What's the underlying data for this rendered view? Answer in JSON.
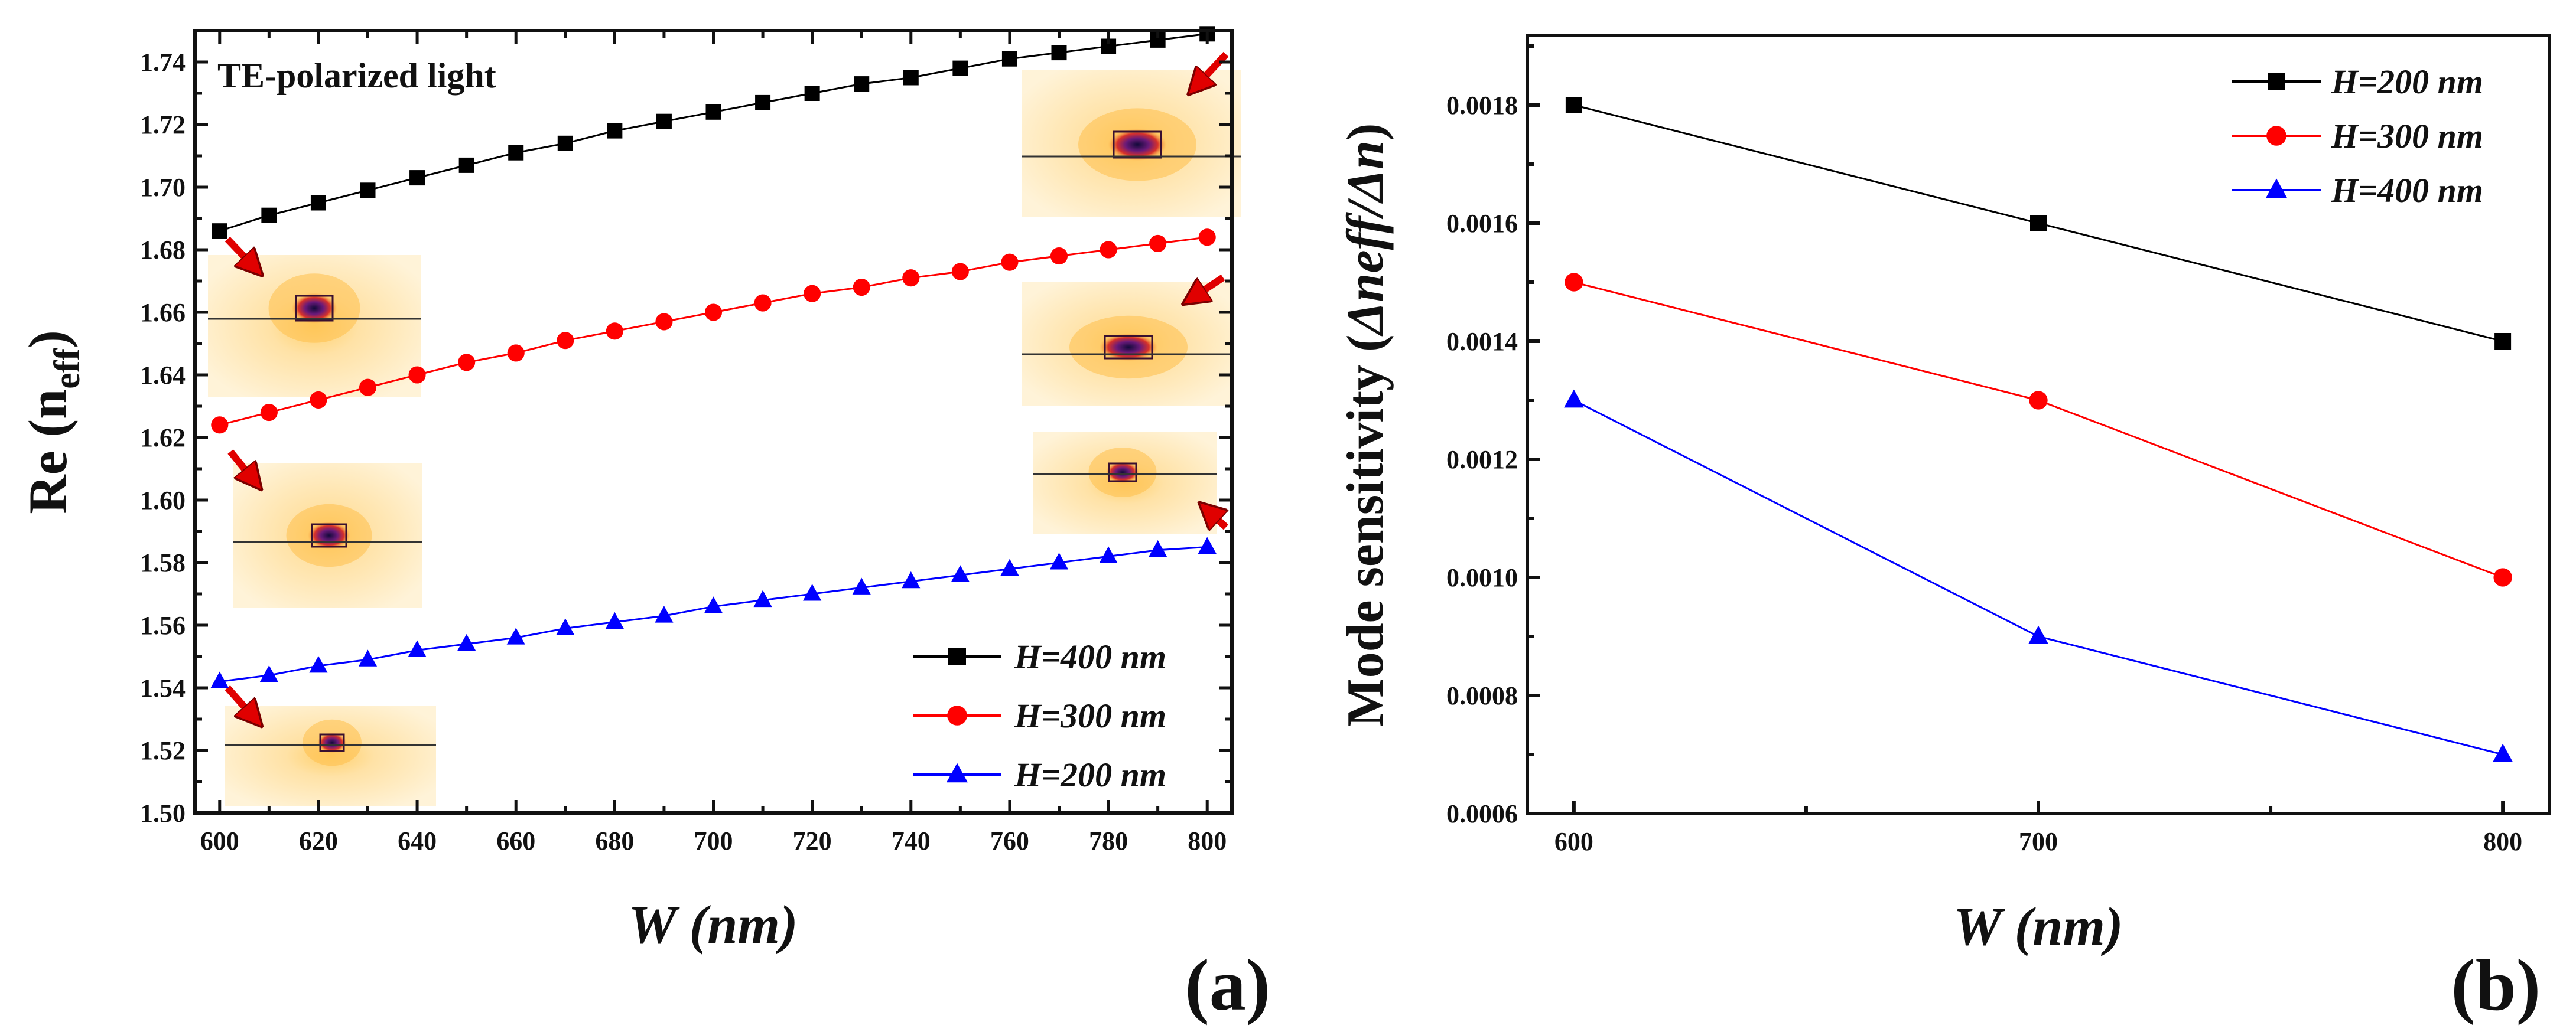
{
  "chart_data": [
    {
      "type": "line",
      "panel_label": "(a)",
      "annotation": "TE-polarized light",
      "xlabel": "W (nm)",
      "ylabel_main": "Re (n",
      "ylabel_sub": "eff",
      "ylabel_close": ")",
      "xlim": [
        595,
        805
      ],
      "ylim": [
        1.5,
        1.75
      ],
      "xticks": [
        600,
        620,
        640,
        660,
        680,
        700,
        720,
        740,
        760,
        780,
        800
      ],
      "yticks": [
        1.5,
        1.52,
        1.54,
        1.56,
        1.58,
        1.6,
        1.62,
        1.64,
        1.66,
        1.68,
        1.7,
        1.72,
        1.74
      ],
      "x": [
        600,
        610,
        620,
        630,
        640,
        650,
        660,
        670,
        680,
        690,
        700,
        710,
        720,
        730,
        740,
        750,
        760,
        770,
        780,
        790,
        800
      ],
      "legend_position": "lower-right",
      "series": [
        {
          "name": "H=400 nm",
          "color": "#000000",
          "marker": "square",
          "values": [
            1.686,
            1.691,
            1.695,
            1.699,
            1.703,
            1.707,
            1.711,
            1.714,
            1.718,
            1.721,
            1.724,
            1.727,
            1.73,
            1.733,
            1.735,
            1.738,
            1.741,
            1.743,
            1.745,
            1.747,
            1.749
          ]
        },
        {
          "name": "H=300 nm",
          "color": "#ff0000",
          "marker": "circle",
          "values": [
            1.624,
            1.628,
            1.632,
            1.636,
            1.64,
            1.644,
            1.647,
            1.651,
            1.654,
            1.657,
            1.66,
            1.663,
            1.666,
            1.668,
            1.671,
            1.673,
            1.676,
            1.678,
            1.68,
            1.682,
            1.684
          ]
        },
        {
          "name": "H=200 nm",
          "color": "#0000ff",
          "marker": "triangle",
          "values": [
            1.542,
            1.544,
            1.547,
            1.549,
            1.552,
            1.554,
            1.556,
            1.559,
            1.561,
            1.563,
            1.566,
            1.568,
            1.57,
            1.572,
            1.574,
            1.576,
            1.578,
            1.58,
            1.582,
            1.584,
            1.585
          ]
        }
      ]
    },
    {
      "type": "line",
      "panel_label": "(b)",
      "xlabel": "W (nm)",
      "ylabel_main": "Mode sensitivity (",
      "ylabel_italic": "Δneff/Δn",
      "ylabel_close": ")",
      "xlim": [
        600,
        800
      ],
      "ylim": [
        0.0006,
        0.0019
      ],
      "xticks": [
        600,
        700,
        800
      ],
      "yticks": [
        0.0006,
        0.0008,
        0.001,
        0.0012,
        0.0014,
        0.0016,
        0.0018
      ],
      "ytick_labels": [
        "0.0006",
        "0.0008",
        "0.0010",
        "0.0012",
        "0.0014",
        "0.0016",
        "0.0018"
      ],
      "x": [
        600,
        700,
        800
      ],
      "legend_position": "top-right",
      "series": [
        {
          "name": "H=200 nm",
          "color": "#000000",
          "marker": "square",
          "values": [
            0.0018,
            0.0016,
            0.0014
          ]
        },
        {
          "name": "H=300 nm",
          "color": "#ff0000",
          "marker": "circle",
          "values": [
            0.0015,
            0.0013,
            0.001
          ]
        },
        {
          "name": "H=400 nm",
          "color": "#0000ff",
          "marker": "triangle",
          "values": [
            0.0013,
            0.0009,
            0.0007
          ]
        }
      ]
    }
  ]
}
